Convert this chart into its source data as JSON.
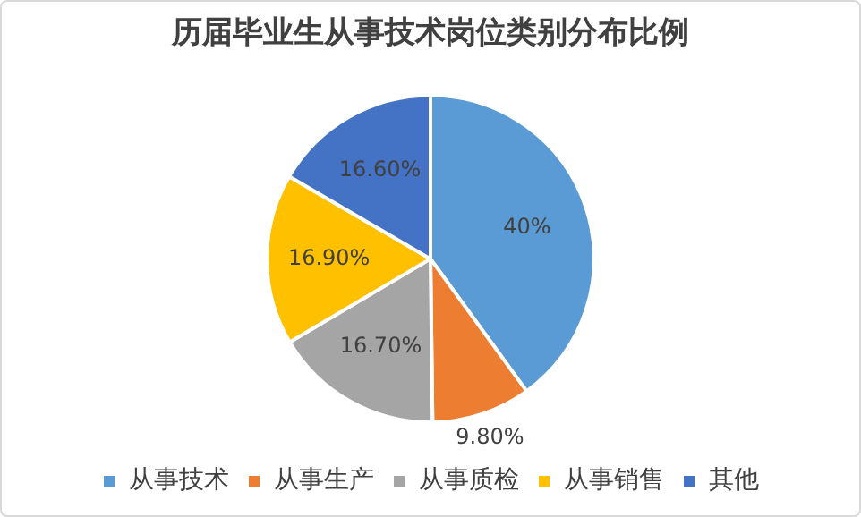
{
  "chart_data": {
    "type": "pie",
    "title": "历届毕业生从事技术岗位类别分布比例",
    "categories": [
      "从事技术",
      "从事生产",
      "从事质检",
      "从事销售",
      "其他"
    ],
    "values": [
      40,
      9.8,
      16.7,
      16.9,
      16.6
    ],
    "value_labels": [
      "40%",
      "9.80%",
      "16.70%",
      "16.90%",
      "16.60%"
    ],
    "colors": [
      "#5b9bd5",
      "#ed7d31",
      "#a5a5a5",
      "#ffc000",
      "#4472c4"
    ],
    "legend": "bottom"
  }
}
